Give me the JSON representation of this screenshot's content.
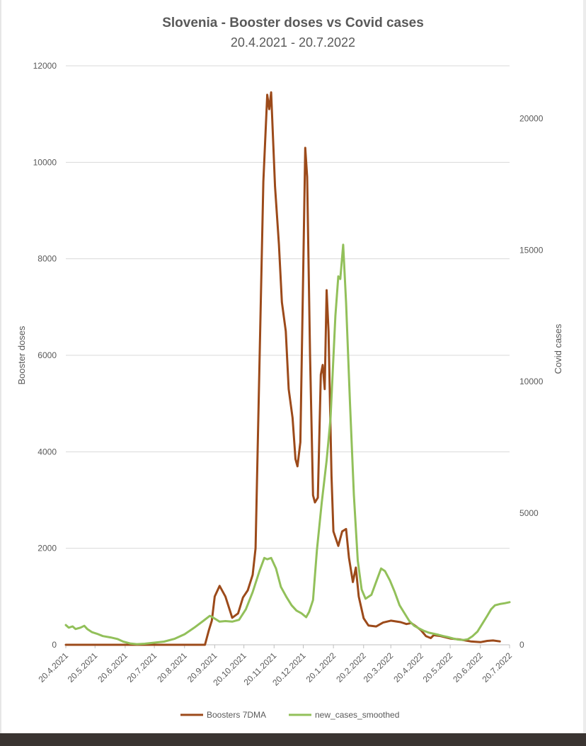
{
  "chart_data": {
    "type": "line",
    "title": "Slovenia - Booster doses vs Covid cases",
    "subtitle": "20.4.2021 - 20.7.2022",
    "ylabel": "Booster doses",
    "y2label": "Covid cases",
    "x_ticks": [
      "20.4.2021",
      "20.5.2021",
      "20.6.2021",
      "20.7.2021",
      "20.8.2021",
      "20.9.2021",
      "20.10.2021",
      "20.11.2021",
      "20.12.2021",
      "20.1.2022",
      "20.2.2022",
      "20.3.2022",
      "20.4.2022",
      "20.5.2022",
      "20.6.2022",
      "20.7.2022"
    ],
    "y_ticks": [
      0,
      2000,
      4000,
      6000,
      8000,
      10000,
      12000
    ],
    "y2_ticks": [
      0,
      5000,
      10000,
      15000,
      20000
    ],
    "ylim": [
      0,
      12000
    ],
    "y2lim": [
      0,
      22000
    ],
    "grid": true,
    "legend_position": "bottom",
    "series": [
      {
        "name": "Boosters 7DMA",
        "color": "#9c4a1a",
        "axis": "left",
        "points": [
          [
            "20.4.2021",
            0
          ],
          [
            "20.5.2021",
            0
          ],
          [
            "20.6.2021",
            0
          ],
          [
            "20.7.2021",
            0
          ],
          [
            "20.8.2021",
            0
          ],
          [
            "10.9.2021",
            0
          ],
          [
            "14.9.2021",
            300
          ],
          [
            "17.9.2021",
            500
          ],
          [
            "20.9.2021",
            1000
          ],
          [
            "25.9.2021",
            1220
          ],
          [
            "1.10.2021",
            1000
          ],
          [
            "5.10.2021",
            750
          ],
          [
            "8.10.2021",
            560
          ],
          [
            "14.10.2021",
            650
          ],
          [
            "19.10.2021",
            980
          ],
          [
            "24.10.2021",
            1130
          ],
          [
            "29.10.2021",
            1450
          ],
          [
            "1.11.2021",
            2000
          ],
          [
            "5.11.2021",
            5800
          ],
          [
            "9.11.2021",
            9600
          ],
          [
            "13.11.2021",
            11400
          ],
          [
            "15.11.2021",
            11100
          ],
          [
            "17.11.2021",
            11450
          ],
          [
            "21.11.2021",
            9500
          ],
          [
            "25.11.2021",
            8300
          ],
          [
            "28.11.2021",
            7100
          ],
          [
            "2.12.2021",
            6500
          ],
          [
            "5.12.2021",
            5300
          ],
          [
            "9.12.2021",
            4700
          ],
          [
            "12.12.2021",
            3850
          ],
          [
            "14.12.2021",
            3700
          ],
          [
            "17.12.2021",
            4200
          ],
          [
            "20.12.2021",
            7800
          ],
          [
            "22.12.2021",
            10300
          ],
          [
            "24.12.2021",
            9700
          ],
          [
            "27.12.2021",
            6000
          ],
          [
            "30.12.2021",
            3100
          ],
          [
            "1.1.2022",
            2950
          ],
          [
            "4.1.2022",
            3050
          ],
          [
            "7.1.2022",
            5600
          ],
          [
            "9.1.2022",
            5800
          ],
          [
            "11.1.2022",
            5300
          ],
          [
            "13.1.2022",
            7350
          ],
          [
            "15.1.2022",
            6500
          ],
          [
            "18.1.2022",
            3500
          ],
          [
            "20.1.2022",
            2350
          ],
          [
            "25.1.2022",
            2050
          ],
          [
            "29.1.2022",
            2350
          ],
          [
            "2.2.2022",
            2400
          ],
          [
            "5.2.2022",
            1800
          ],
          [
            "9.2.2022",
            1300
          ],
          [
            "12.2.2022",
            1600
          ],
          [
            "15.2.2022",
            1000
          ],
          [
            "20.2.2022",
            550
          ],
          [
            "25.2.2022",
            400
          ],
          [
            "5.3.2022",
            380
          ],
          [
            "12.3.2022",
            460
          ],
          [
            "20.3.2022",
            500
          ],
          [
            "30.3.2022",
            470
          ],
          [
            "5.4.2022",
            430
          ],
          [
            "10.4.2022",
            450
          ],
          [
            "15.4.2022",
            380
          ],
          [
            "20.4.2022",
            300
          ],
          [
            "25.4.2022",
            180
          ],
          [
            "30.4.2022",
            140
          ],
          [
            "3.5.2022",
            200
          ],
          [
            "10.5.2022",
            180
          ],
          [
            "20.5.2022",
            130
          ],
          [
            "30.5.2022",
            110
          ],
          [
            "10.6.2022",
            70
          ],
          [
            "20.6.2022",
            55
          ],
          [
            "27.6.2022",
            80
          ],
          [
            "3.7.2022",
            90
          ],
          [
            "10.7.2022",
            70
          ]
        ]
      },
      {
        "name": "new_cases_smoothed",
        "color": "#92c05a",
        "axis": "right",
        "points": [
          [
            "20.4.2021",
            750
          ],
          [
            "23.4.2021",
            650
          ],
          [
            "27.4.2021",
            700
          ],
          [
            "30.4.2021",
            600
          ],
          [
            "5.5.2021",
            650
          ],
          [
            "9.5.2021",
            720
          ],
          [
            "12.5.2021",
            600
          ],
          [
            "17.5.2021",
            480
          ],
          [
            "22.5.2021",
            420
          ],
          [
            "28.5.2021",
            330
          ],
          [
            "5.6.2021",
            280
          ],
          [
            "12.6.2021",
            220
          ],
          [
            "18.6.2021",
            120
          ],
          [
            "25.6.2021",
            50
          ],
          [
            "2.7.2021",
            25
          ],
          [
            "10.7.2021",
            40
          ],
          [
            "20.7.2021",
            80
          ],
          [
            "30.7.2021",
            120
          ],
          [
            "10.8.2021",
            230
          ],
          [
            "20.8.2021",
            400
          ],
          [
            "30.8.2021",
            650
          ],
          [
            "8.9.2021",
            900
          ],
          [
            "15.9.2021",
            1100
          ],
          [
            "19.9.2021",
            1020
          ],
          [
            "25.9.2021",
            880
          ],
          [
            "1.10.2021",
            900
          ],
          [
            "8.10.2021",
            880
          ],
          [
            "15.10.2021",
            950
          ],
          [
            "22.10.2021",
            1350
          ],
          [
            "29.10.2021",
            2000
          ],
          [
            "5.11.2021",
            2800
          ],
          [
            "10.11.2021",
            3300
          ],
          [
            "13.11.2021",
            3250
          ],
          [
            "17.11.2021",
            3300
          ],
          [
            "22.11.2021",
            2900
          ],
          [
            "27.11.2021",
            2200
          ],
          [
            "3.12.2021",
            1800
          ],
          [
            "8.12.2021",
            1500
          ],
          [
            "13.12.2021",
            1300
          ],
          [
            "18.12.2021",
            1200
          ],
          [
            "23.12.2021",
            1050
          ],
          [
            "26.12.2021",
            1250
          ],
          [
            "30.12.2021",
            1700
          ],
          [
            "3.1.2022",
            3600
          ],
          [
            "8.1.2022",
            5400
          ],
          [
            "13.1.2022",
            7000
          ],
          [
            "17.1.2022",
            8600
          ],
          [
            "22.1.2022",
            12500
          ],
          [
            "25.1.2022",
            14000
          ],
          [
            "27.1.2022",
            13900
          ],
          [
            "30.1.2022",
            15200
          ],
          [
            "2.2.2022",
            13000
          ],
          [
            "6.2.2022",
            9200
          ],
          [
            "10.2.2022",
            5700
          ],
          [
            "14.2.2022",
            3200
          ],
          [
            "18.2.2022",
            2100
          ],
          [
            "22.2.2022",
            1750
          ],
          [
            "28.2.2022",
            1900
          ],
          [
            "5.3.2022",
            2400
          ],
          [
            "10.3.2022",
            2900
          ],
          [
            "14.3.2022",
            2800
          ],
          [
            "19.3.2022",
            2450
          ],
          [
            "24.3.2022",
            2000
          ],
          [
            "29.3.2022",
            1500
          ],
          [
            "3.4.2022",
            1200
          ],
          [
            "8.4.2022",
            900
          ],
          [
            "13.4.2022",
            720
          ],
          [
            "18.4.2022",
            620
          ],
          [
            "23.4.2022",
            530
          ],
          [
            "28.4.2022",
            460
          ],
          [
            "3.5.2022",
            420
          ],
          [
            "8.5.2022",
            380
          ],
          [
            "13.5.2022",
            330
          ],
          [
            "18.5.2022",
            290
          ],
          [
            "23.5.2022",
            240
          ],
          [
            "28.5.2022",
            200
          ],
          [
            "2.6.2022",
            180
          ],
          [
            "7.6.2022",
            210
          ],
          [
            "12.6.2022",
            330
          ],
          [
            "17.6.2022",
            500
          ],
          [
            "22.6.2022",
            800
          ],
          [
            "27.6.2022",
            1100
          ],
          [
            "1.7.2022",
            1350
          ],
          [
            "5.7.2022",
            1500
          ],
          [
            "10.7.2022",
            1550
          ],
          [
            "15.7.2022",
            1580
          ],
          [
            "20.7.2022",
            1620
          ]
        ]
      }
    ]
  }
}
